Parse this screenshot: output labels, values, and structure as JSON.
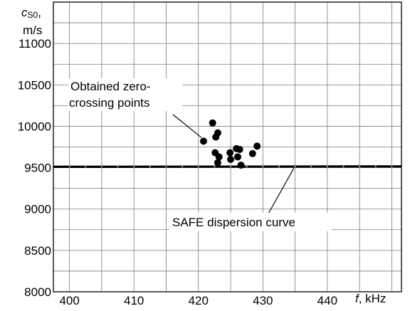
{
  "chart_data": {
    "type": "scatter",
    "xlabel_italic": "f",
    "xlabel_unit": ", kHz",
    "ylabel_italic": "c",
    "ylabel_sub": "S0",
    "ylabel_sep": ",",
    "ylabel_unit": "m/s",
    "xlim": [
      397.5,
      451.5
    ],
    "ylim": [
      8000,
      11500
    ],
    "x_ticks": [
      400,
      410,
      420,
      430,
      440
    ],
    "y_ticks": [
      8000,
      8500,
      9000,
      9500,
      10000,
      10500,
      11000
    ],
    "x_grid_step": 5,
    "y_grid_step": 250,
    "grid": true,
    "series": [
      {
        "kind": "points",
        "color": "#000000",
        "points": [
          {
            "x": 420.8,
            "y": 9820
          },
          {
            "x": 422.2,
            "y": 10040
          },
          {
            "x": 422.7,
            "y": 9870
          },
          {
            "x": 423.0,
            "y": 9920
          },
          {
            "x": 422.6,
            "y": 9680
          },
          {
            "x": 423.2,
            "y": 9630
          },
          {
            "x": 423.0,
            "y": 9560
          },
          {
            "x": 424.9,
            "y": 9680
          },
          {
            "x": 425.0,
            "y": 9600
          },
          {
            "x": 425.9,
            "y": 9730
          },
          {
            "x": 426.4,
            "y": 9720
          },
          {
            "x": 426.1,
            "y": 9630
          },
          {
            "x": 426.6,
            "y": 9530
          },
          {
            "x": 428.4,
            "y": 9670
          },
          {
            "x": 429.1,
            "y": 9760
          }
        ]
      },
      {
        "kind": "line",
        "color": "#000000",
        "marker_color": "#00e5e5",
        "x": [
          397.5,
          451.5
        ],
        "y": [
          9510,
          9515
        ]
      }
    ],
    "annotations": [
      {
        "lines": [
          "Obtained  zero-",
          "crossing points"
        ],
        "pointer_to": {
          "x": 420.9,
          "y": 9830
        }
      },
      {
        "lines": [
          "SAFE dispersion curve"
        ],
        "pointer_to": {
          "x": 434.8,
          "y": 9510
        }
      }
    ]
  }
}
